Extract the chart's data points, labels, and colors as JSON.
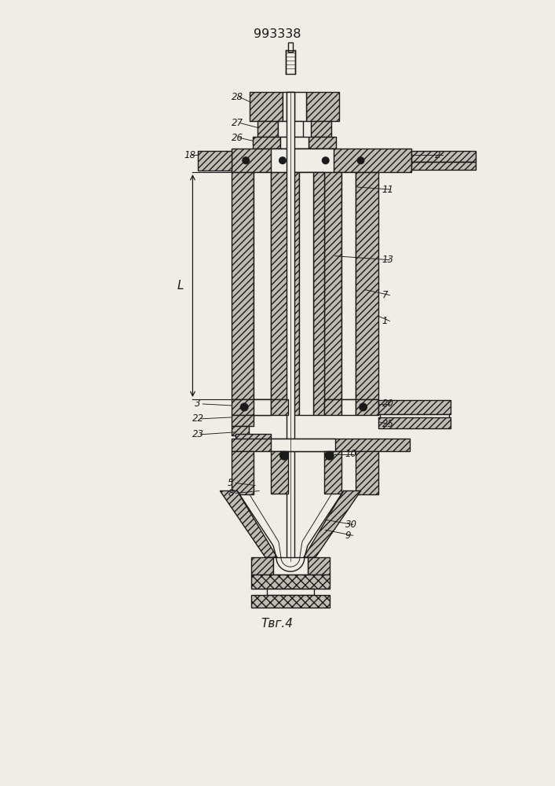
{
  "title": "993338",
  "fig_label": "Τвг.4",
  "bg_color": "#f0ede6",
  "line_color": "#1a1a1a",
  "hatch_fill": "#c0bcb4"
}
